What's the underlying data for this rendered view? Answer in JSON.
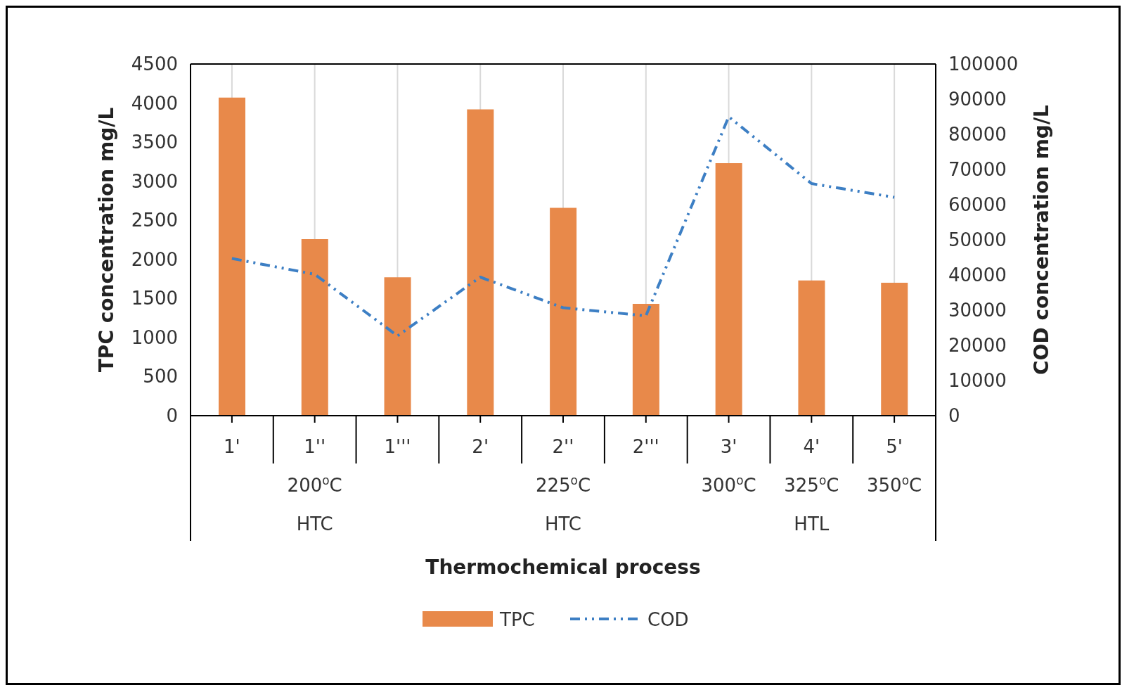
{
  "chart_data": {
    "type": "bar",
    "xlabel": "Thermochemical process",
    "ylabel": "TPC concentration mg/L",
    "y2label": "COD concentration mg/L",
    "categories": [
      "1'",
      "1''",
      "1'''",
      "2'",
      "2''",
      "2'''",
      "3'",
      "4'",
      "5'"
    ],
    "series": [
      {
        "name": "TPC",
        "color": "#e8894a",
        "values": [
          4070,
          2260,
          1770,
          3920,
          2660,
          1430,
          3230,
          1730,
          1700
        ]
      },
      {
        "name": "COD",
        "type": "line",
        "axis": "y2",
        "color": "#3d7fc4",
        "line_style": "dashed",
        "values": [
          44700,
          40200,
          22700,
          39400,
          30700,
          28400,
          85000,
          66000,
          62100
        ]
      }
    ],
    "ylim": [
      0,
      4500
    ],
    "yticks": [
      0,
      500,
      1000,
      1500,
      2000,
      2500,
      3000,
      3500,
      4000,
      4500
    ],
    "y2lim": [
      0,
      100000
    ],
    "y2ticks": [
      0,
      10000,
      20000,
      30000,
      40000,
      50000,
      60000,
      70000,
      80000,
      90000,
      100000
    ],
    "annotations": [
      "200$^{o}$C",
      "HTC",
      "225$^{o}$C",
      "HTC",
      "300$^{o}$C",
      "325$^{o}$C",
      "HTL",
      "350$^{o}$C"
    ],
    "grid": "x",
    "legend": "bottom"
  }
}
